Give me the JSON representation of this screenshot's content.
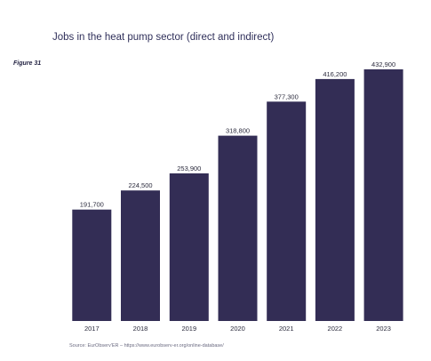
{
  "title": "Jobs in the heat pump sector (direct and indirect)",
  "figure_label": "Figure 31",
  "source": "Source: EurObserv'ER – https://www.eurobserv-er.org/online-database/",
  "colors": {
    "bar": "#332d55",
    "text": "#2b2b3d"
  },
  "chart_data": {
    "type": "bar",
    "title": "Jobs in the heat pump sector (direct and indirect)",
    "categories": [
      "2017",
      "2018",
      "2019",
      "2020",
      "2021",
      "2022",
      "2023"
    ],
    "values": [
      191700,
      224500,
      253900,
      318800,
      377300,
      416200,
      432900
    ],
    "value_labels": [
      "191,700",
      "224,500",
      "253,900",
      "318,800",
      "377,300",
      "416,200",
      "432,900"
    ],
    "xlabel": "",
    "ylabel": "",
    "ylim": [
      0,
      432900
    ],
    "grid": false,
    "legend": "none"
  }
}
